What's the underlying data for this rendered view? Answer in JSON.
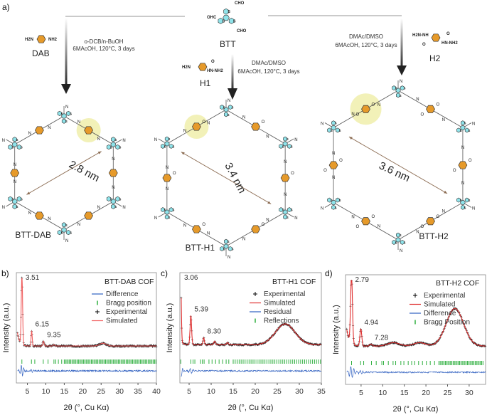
{
  "panel_labels": {
    "a": "a)",
    "b": "b)",
    "c": "c)",
    "d": "d)"
  },
  "scheme": {
    "btt": {
      "label": "BTT",
      "groups": [
        "CHO",
        "OHC",
        "CHO"
      ]
    },
    "dab": {
      "label": "DAB",
      "groups": [
        "H2N",
        "NH2"
      ],
      "conditions": [
        "o-DCB/n-BuOH",
        "6MAcOH, 120°C, 3 days"
      ]
    },
    "h1": {
      "label": "H1",
      "groups": [
        "H2N",
        "O",
        "HN-NH2"
      ],
      "conditions": [
        "DMAc/DMSO",
        "6MAcOH, 120°C, 3 days"
      ]
    },
    "h2": {
      "label": "H2",
      "groups": [
        "H2N-NH",
        "O",
        "O",
        "HN-NH2"
      ],
      "conditions": [
        "DMAc/DMSO",
        "6MAcOH, 120°C, 3 days"
      ]
    },
    "frameworks": [
      {
        "name": "BTT-DAB",
        "pore": "2.8 nm",
        "linker": "DAB"
      },
      {
        "name": "BTT-H1",
        "pore": "3.4 nm",
        "linker": "H1"
      },
      {
        "name": "BTT-H2",
        "pore": "3.6 nm",
        "linker": "H2"
      }
    ]
  },
  "colors": {
    "node": "#8fe3ea",
    "linker": "#e69a2a",
    "highlight": "#f1f0b0",
    "S": "#f08a3c",
    "N": "#3a8fd0",
    "O": "#e33",
    "simulated": "#e03030",
    "difference": "#3060c0",
    "bragg": "#30b040",
    "experimental": "#000000"
  },
  "chart_data": [
    {
      "type": "line",
      "title": "BTT-DAB COF",
      "xlabel": "2θ (°, Cu Kα)",
      "ylabel": "Intensity (a.u.)",
      "xlim": [
        2,
        40
      ],
      "ylim": [
        0,
        1
      ],
      "xticks": [
        "5",
        "10",
        "15",
        "20",
        "25",
        "30",
        "35",
        "40"
      ],
      "xtick_values": [
        5,
        10,
        15,
        20,
        25,
        30,
        35,
        40
      ],
      "peaks": [
        {
          "x": 3.51,
          "intensity": 1.0,
          "width": 0.18,
          "label": "3.51"
        },
        {
          "x": 6.15,
          "intensity": 0.22,
          "width": 0.15,
          "label": "6.15"
        },
        {
          "x": 9.35,
          "intensity": 0.07,
          "width": 0.18,
          "label": "9.35"
        },
        {
          "x": 12.2,
          "intensity": 0.02,
          "width": 0.2,
          "label": null
        }
      ],
      "humps": [
        {
          "x": 25.5,
          "intensity": 0.04,
          "width": 0.9
        }
      ],
      "baseline": 0.04,
      "low_angle_rise": 0.32,
      "bragg_positions": [
        3.5,
        6.1,
        7.0,
        9.3,
        10.6,
        12.2,
        12.7,
        13.4,
        14.3
      ],
      "bragg_dense_range": [
        15,
        40
      ],
      "bragg_dense_step": 0.35,
      "legend": [
        {
          "label": "Difference",
          "symbol": "line",
          "color": "#3060c0"
        },
        {
          "label": "Bragg position",
          "symbol": "tick",
          "color": "#30b040"
        },
        {
          "label": "Experimental",
          "symbol": "plus",
          "color": "#000000"
        },
        {
          "label": "Simulated",
          "symbol": "line",
          "color": "#f06060"
        }
      ],
      "legend_position": "top-right"
    },
    {
      "type": "line",
      "title": "BTT-H1 COF",
      "xlabel": "2θ (°, Cu Kα)",
      "ylabel": "Intensity (a.u.)",
      "xlim": [
        2.9,
        35
      ],
      "ylim": [
        0,
        1
      ],
      "xticks": [
        "5",
        "10",
        "15",
        "20",
        "25",
        "30",
        "35"
      ],
      "xtick_values": [
        5,
        10,
        15,
        20,
        25,
        30,
        35
      ],
      "peaks": [
        {
          "x": 3.06,
          "intensity": 1.0,
          "width": 0.15,
          "label": "3.06"
        },
        {
          "x": 5.39,
          "intensity": 0.42,
          "width": 0.17,
          "label": "5.39"
        },
        {
          "x": 8.3,
          "intensity": 0.1,
          "width": 0.15,
          "label": "8.30"
        },
        {
          "x": 10.8,
          "intensity": 0.05,
          "width": 0.2,
          "label": null
        },
        {
          "x": 13.7,
          "intensity": 0.03,
          "width": 0.2,
          "label": null
        }
      ],
      "humps": [
        {
          "x": 26.8,
          "intensity": 0.3,
          "width": 2.2
        }
      ],
      "baseline": 0.06,
      "low_angle_rise": 0.05,
      "bragg_positions": [
        3.1,
        5.4,
        5.9,
        6.3,
        7.6,
        8.0,
        8.4,
        9.5,
        10.2,
        11.0,
        11.8,
        12.6,
        13.4,
        14.0
      ],
      "bragg_dense_range": [
        15,
        35
      ],
      "bragg_dense_step": 0.45,
      "legend": [
        {
          "label": "Experimental",
          "symbol": "plus",
          "color": "#000000"
        },
        {
          "label": "Simulated",
          "symbol": "line",
          "color": "#e03030"
        },
        {
          "label": "Residual",
          "symbol": "line",
          "color": "#3060c0"
        },
        {
          "label": "Reflections",
          "symbol": "tick",
          "color": "#30b040"
        }
      ],
      "legend_position": "top-right"
    },
    {
      "type": "line",
      "title": "BTT-H2 COF",
      "xlabel": "2θ (°, Cu Kα)",
      "ylabel": "Intensity (a.u.)",
      "xlim": [
        1.4,
        33.8
      ],
      "ylim": [
        0,
        1
      ],
      "xticks": [
        "5",
        "10",
        "15",
        "20",
        "25",
        "30"
      ],
      "xtick_values": [
        5,
        10,
        15,
        20,
        25,
        30
      ],
      "peaks": [
        {
          "x": 2.79,
          "intensity": 1.0,
          "width": 0.22,
          "label": "2.79"
        },
        {
          "x": 4.94,
          "intensity": 0.25,
          "width": 0.22,
          "label": "4.94"
        },
        {
          "x": 7.28,
          "intensity": 0.03,
          "width": 0.3,
          "label": "7.28"
        }
      ],
      "humps": [
        {
          "x": 12.5,
          "intensity": 0.05,
          "width": 1.4
        },
        {
          "x": 18.5,
          "intensity": 0.05,
          "width": 1.4
        },
        {
          "x": 26.7,
          "intensity": 0.55,
          "width": 2.0
        }
      ],
      "baseline": 0.06,
      "low_angle_rise": 0.4,
      "bragg_positions": [
        2.8,
        4.9,
        5.6,
        7.4,
        8.5,
        9.8,
        10.2,
        11.3,
        12.4,
        13.0,
        14.2,
        14.9,
        15.9,
        16.7,
        17.4,
        18.3,
        19.2,
        20.1,
        21.0,
        22.0
      ],
      "bragg_dense_range": [
        23,
        33.5
      ],
      "bragg_dense_step": 0.3,
      "legend": [
        {
          "label": "Experimental",
          "symbol": "plus",
          "color": "#000000"
        },
        {
          "label": "Simulated",
          "symbol": "line",
          "color": "#e03030"
        },
        {
          "label": "Difference",
          "symbol": "line",
          "color": "#3060c0"
        },
        {
          "label": "Bragg Position",
          "symbol": "tick",
          "color": "#30b040"
        }
      ],
      "legend_position": "top-right"
    }
  ]
}
